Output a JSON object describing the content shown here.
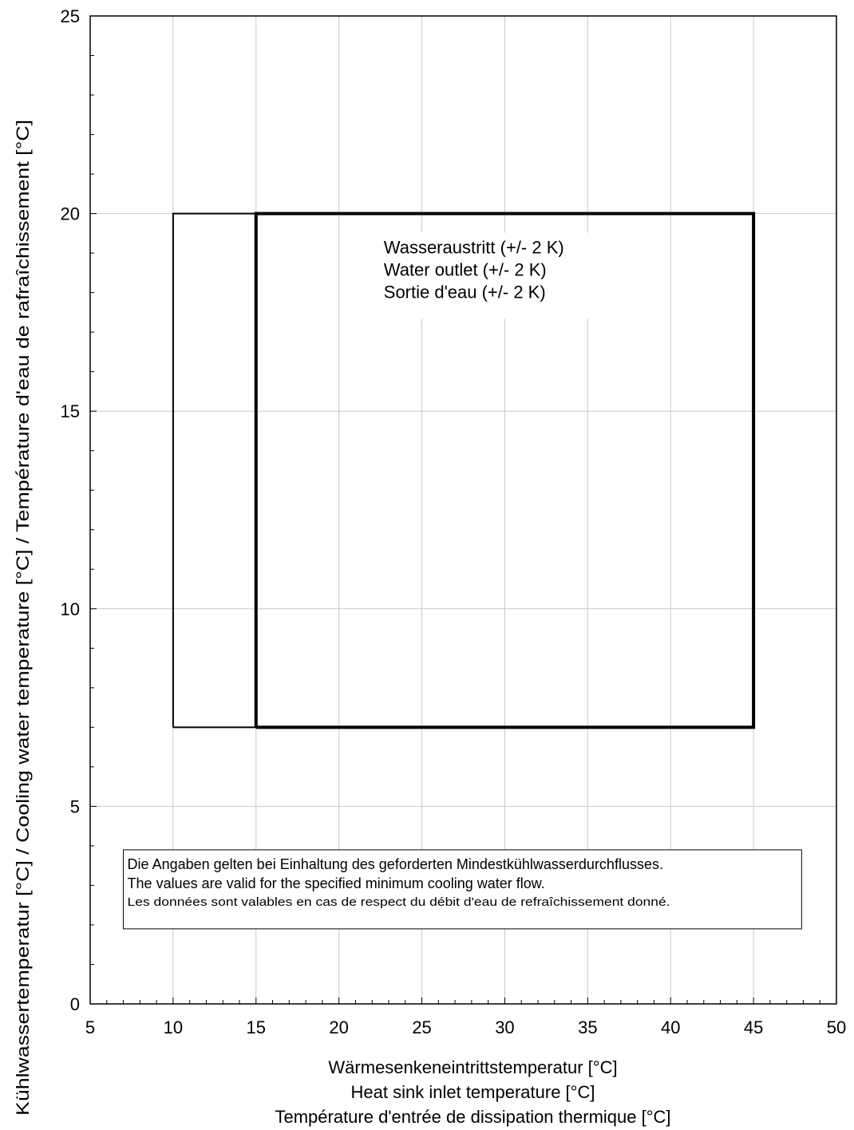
{
  "chart_data": {
    "type": "line",
    "xlabel": [
      "Wärmesenkeneintrittstemperatur [°C]",
      "Heat sink inlet temperature [°C]",
      "Température d'entrée de dissipation thermique [°C]"
    ],
    "ylabel": "Kühlwassertemperatur [°C]  / Cooling water temperature [°C]  /  Température d'eau de rafraîchissement [°C]",
    "xlim": [
      5,
      50
    ],
    "ylim": [
      0,
      25
    ],
    "x_ticks": [
      5,
      10,
      15,
      20,
      25,
      30,
      35,
      40,
      45,
      50
    ],
    "y_ticks": [
      0,
      5,
      10,
      15,
      20,
      25
    ],
    "x_minor_step": 1,
    "y_minor_step": 1,
    "grid": true,
    "series": [
      {
        "points": [
          [
            10,
            7
          ],
          [
            10,
            20
          ],
          [
            15,
            20
          ],
          [
            15,
            7
          ],
          [
            10,
            7
          ]
        ],
        "style": "thin"
      },
      {
        "points": [
          [
            15,
            7
          ],
          [
            15,
            20
          ],
          [
            45,
            20
          ],
          [
            45,
            7
          ],
          [
            15,
            7
          ]
        ],
        "style": "thick"
      }
    ],
    "annotations": [
      {
        "lines": [
          "Wasseraustritt  (+/- 2 K)",
          "Water outlet (+/- 2 K)",
          "Sortie d'eau (+/- 2 K)"
        ]
      }
    ],
    "note_box": {
      "lines": [
        "Die Angaben gelten bei Einhaltung des geforderten Mindestkühlwasserdurchflusses.",
        "The values are valid for the specified minimum cooling water flow.",
        "Les données sont valables en cas de respect du débit d'eau de refraîchissement donné."
      ]
    }
  }
}
